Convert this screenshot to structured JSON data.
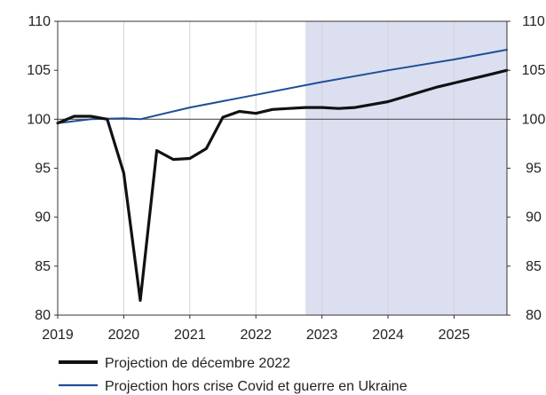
{
  "chart_data": {
    "type": "line",
    "x_ticks": [
      "2019",
      "2020",
      "2021",
      "2022",
      "2023",
      "2024",
      "2025"
    ],
    "xlim": [
      2019,
      2025.8
    ],
    "y_ticks": [
      80,
      85,
      90,
      95,
      100,
      105,
      110
    ],
    "ylim": [
      80,
      110
    ],
    "y_axis_right_mirrored": true,
    "reference_line": 100,
    "shaded_region": {
      "from": 2022.75,
      "to": 2025.8,
      "color": "#dcdff0"
    },
    "grid": "vertical",
    "legend_position": "bottom",
    "series": [
      {
        "name": "Projection de décembre 2022",
        "color": "#111111",
        "x": [
          2019.0,
          2019.25,
          2019.5,
          2019.75,
          2020.0,
          2020.25,
          2020.5,
          2020.75,
          2021.0,
          2021.25,
          2021.5,
          2021.75,
          2022.0,
          2022.25,
          2022.5,
          2022.75,
          2023.0,
          2023.25,
          2023.5,
          2023.75,
          2024.0,
          2024.25,
          2024.5,
          2024.75,
          2025.0,
          2025.25,
          2025.5,
          2025.8
        ],
        "values": [
          99.6,
          100.3,
          100.3,
          100.0,
          94.5,
          81.5,
          96.8,
          95.9,
          96.0,
          97.0,
          100.2,
          100.8,
          100.6,
          101.0,
          101.1,
          101.2,
          101.2,
          101.1,
          101.2,
          101.5,
          101.8,
          102.3,
          102.8,
          103.3,
          103.7,
          104.1,
          104.5,
          105.0
        ]
      },
      {
        "name": "Projection hors crise Covid et guerre en Ukraine",
        "color": "#1f4e99",
        "x": [
          2019.0,
          2019.5,
          2020.0,
          2020.25,
          2021.0,
          2022.0,
          2023.0,
          2024.0,
          2025.0,
          2025.8
        ],
        "values": [
          99.6,
          100.0,
          100.1,
          100.0,
          101.2,
          102.5,
          103.8,
          105.0,
          106.1,
          107.1
        ]
      }
    ]
  }
}
